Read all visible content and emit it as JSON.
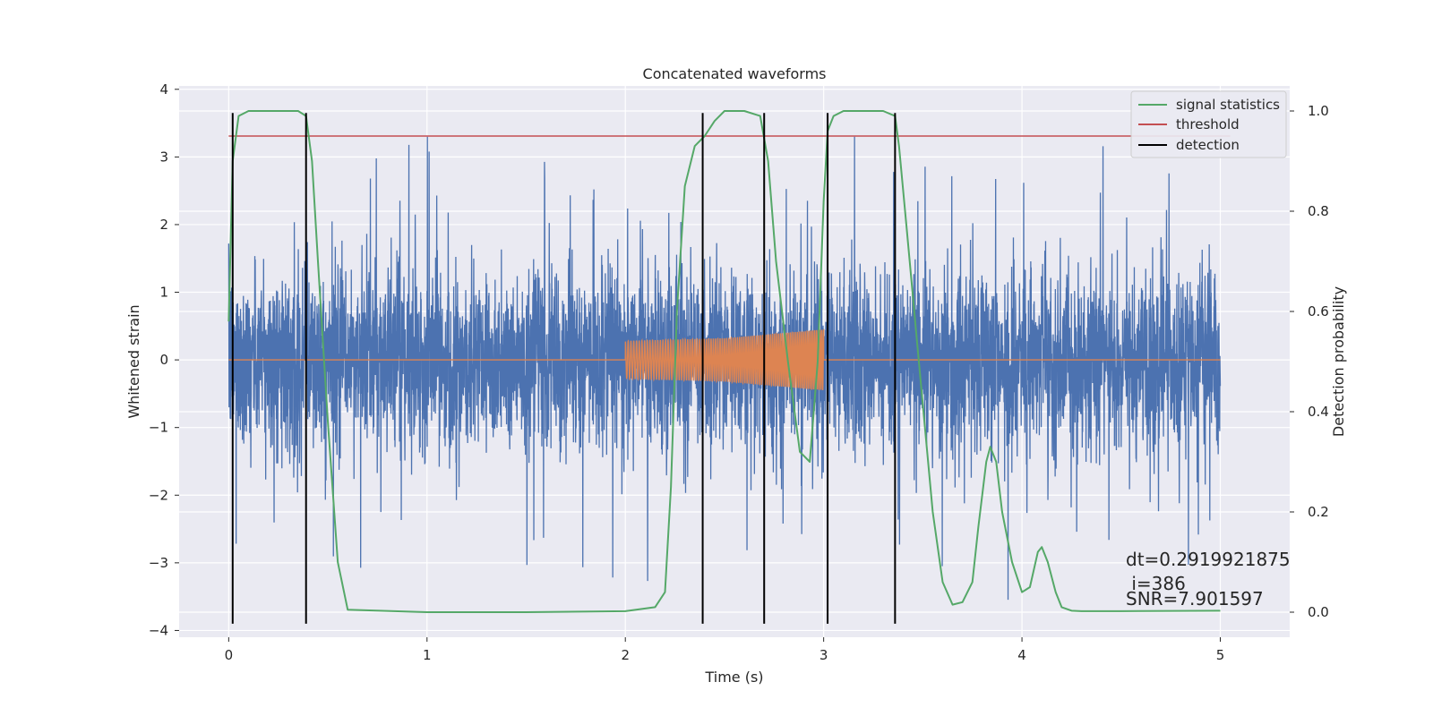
{
  "chart_data": {
    "type": "line",
    "title": "Concatenated waveforms",
    "xlabel": "Time (s)",
    "ylabel": "Whitened strain",
    "ylabel_right": "Detection probability",
    "xlim": [
      -0.25,
      5.35
    ],
    "ylim": [
      -4.1,
      4.05
    ],
    "ylim_right": [
      -0.05,
      1.05
    ],
    "xticks": [
      0,
      1,
      2,
      3,
      4,
      5
    ],
    "yticks": [
      -4,
      -3,
      -2,
      -1,
      0,
      1,
      2,
      3,
      4
    ],
    "yticks_right": [
      0.0,
      0.2,
      0.4,
      0.6,
      0.8,
      1.0
    ],
    "xtick_labels": [
      "0",
      "1",
      "2",
      "3",
      "4",
      "5"
    ],
    "ytick_labels": [
      "−4",
      "−3",
      "−2",
      "−1",
      "0",
      "1",
      "2",
      "3",
      "4"
    ],
    "ytick_labels_right": [
      "0.0",
      "0.2",
      "0.4",
      "0.6",
      "0.8",
      "1.0"
    ],
    "grid": true,
    "legend": {
      "placement": "top-right",
      "entries": [
        {
          "label": "signal statistics",
          "color": "#55a868"
        },
        {
          "label": "threshold",
          "color": "#c44e52"
        },
        {
          "label": "detection",
          "color": "#000000"
        }
      ]
    },
    "colors": {
      "strain": "#4c72b0",
      "waveform": "#dd8452",
      "signal": "#55a868",
      "threshold": "#c44e52",
      "detection": "#000000",
      "background": "#eaeaf2",
      "grid": "#ffffff"
    },
    "series": [
      {
        "name": "strain",
        "axis": "left",
        "x_range": [
          0,
          5
        ],
        "approx_range": [
          -3.7,
          3.3
        ]
      },
      {
        "name": "waveform",
        "axis": "left",
        "x": [
          0,
          2.0,
          2.0,
          2.5,
          3.0,
          3.0,
          5.0
        ],
        "amplitude": [
          0,
          0,
          0.28,
          0.32,
          0.45,
          0,
          0
        ]
      },
      {
        "name": "signal statistics",
        "axis": "right",
        "x": [
          0,
          0.02,
          0.05,
          0.1,
          0.2,
          0.35,
          0.39,
          0.42,
          0.45,
          0.5,
          0.55,
          0.6,
          1.0,
          1.5,
          2.0,
          2.15,
          2.2,
          2.23,
          2.26,
          2.3,
          2.35,
          2.4,
          2.45,
          2.5,
          2.6,
          2.68,
          2.72,
          2.76,
          2.82,
          2.88,
          2.93,
          2.97,
          3.0,
          3.02,
          3.05,
          3.1,
          3.2,
          3.3,
          3.36,
          3.38,
          3.42,
          3.48,
          3.55,
          3.6,
          3.65,
          3.7,
          3.75,
          3.78,
          3.82,
          3.84,
          3.87,
          3.9,
          3.95,
          4.0,
          4.04,
          4.08,
          4.1,
          4.13,
          4.17,
          4.2,
          4.25,
          4.3,
          4.5,
          5.0
        ],
        "y": [
          0.58,
          0.9,
          0.99,
          1.0,
          1.0,
          1.0,
          0.99,
          0.9,
          0.7,
          0.38,
          0.1,
          0.005,
          0.0,
          0.0,
          0.002,
          0.01,
          0.04,
          0.25,
          0.6,
          0.85,
          0.93,
          0.95,
          0.98,
          1.0,
          1.0,
          0.99,
          0.9,
          0.7,
          0.5,
          0.32,
          0.3,
          0.5,
          0.82,
          0.96,
          0.99,
          1.0,
          1.0,
          1.0,
          0.99,
          0.93,
          0.76,
          0.5,
          0.2,
          0.06,
          0.015,
          0.02,
          0.06,
          0.17,
          0.3,
          0.33,
          0.3,
          0.2,
          0.1,
          0.04,
          0.05,
          0.12,
          0.13,
          0.1,
          0.04,
          0.01,
          0.003,
          0.002,
          0.002,
          0.003
        ]
      },
      {
        "name": "threshold",
        "axis": "right",
        "x": [
          0,
          5.05
        ],
        "y": [
          0.95,
          0.95
        ]
      },
      {
        "name": "detection",
        "axis": "left",
        "x": [
          0.02,
          0.39,
          2.39,
          2.7,
          3.02,
          3.36
        ],
        "y_range": [
          -3.9,
          3.65
        ]
      }
    ],
    "annotations": [
      "dt=0.2919921875",
      " i=386",
      "SNR=7.901597"
    ]
  }
}
